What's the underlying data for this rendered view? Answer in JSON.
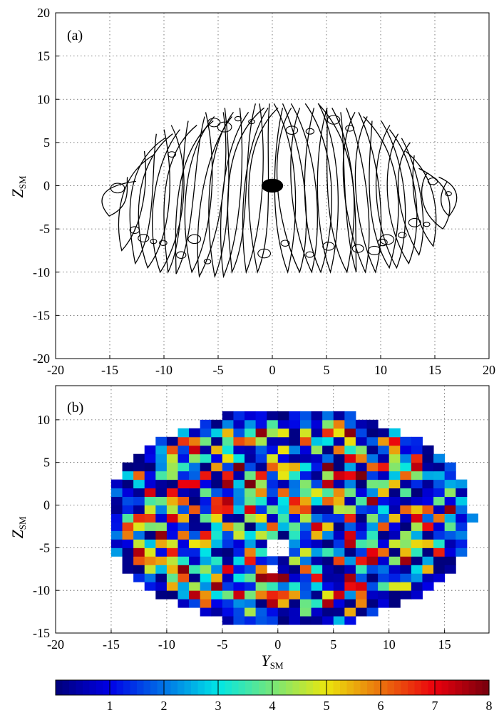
{
  "chart_data": [
    {
      "type": "line",
      "panel_label": "(a)",
      "xlim": [
        -20,
        20
      ],
      "ylim": [
        -20,
        20
      ],
      "xticks": [
        "-20",
        "-15",
        "-10",
        "-5",
        "0",
        "5",
        "10",
        "15",
        "20"
      ],
      "yticks": [
        "20",
        "15",
        "10",
        "5",
        "0",
        "-5",
        "-10",
        "-15",
        "-20"
      ],
      "ylabel": "Z",
      "ylabel_sub": "SM",
      "grid": true,
      "earth_marker": {
        "x": 0,
        "y": 0,
        "rx": 1.0,
        "ry": 1.0
      },
      "orbits": [
        {
          "y": -14.5,
          "top": 1.0,
          "bot": -3.5
        },
        {
          "y": -13.2,
          "top": 4.0,
          "bot": -7.5
        },
        {
          "y": -12.0,
          "top": 6.0,
          "bot": -9.0
        },
        {
          "y": -11.0,
          "top": 6.5,
          "bot": -9.5
        },
        {
          "y": -10.0,
          "top": 7.0,
          "bot": -10.0
        },
        {
          "y": -9.0,
          "top": 7.5,
          "bot": -10.0
        },
        {
          "y": -8.0,
          "top": 8.0,
          "bot": -10.2
        },
        {
          "y": -7.0,
          "top": 8.5,
          "bot": -10.0
        },
        {
          "y": -6.0,
          "top": 8.5,
          "bot": -10.5
        },
        {
          "y": -5.0,
          "top": 9.0,
          "bot": -10.5
        },
        {
          "y": -4.0,
          "top": 9.0,
          "bot": -10.5
        },
        {
          "y": -3.0,
          "top": 9.5,
          "bot": -10.0
        },
        {
          "y": -2.0,
          "top": 9.5,
          "bot": -10.0
        },
        {
          "y": -1.0,
          "top": 9.5,
          "bot": -10.0
        },
        {
          "y": 1.0,
          "top": 9.5,
          "bot": -10.0
        },
        {
          "y": 2.0,
          "top": 9.5,
          "bot": -10.0
        },
        {
          "y": 3.0,
          "top": 9.5,
          "bot": -10.0
        },
        {
          "y": 4.0,
          "top": 9.5,
          "bot": -10.0
        },
        {
          "y": 5.0,
          "top": 9.5,
          "bot": -10.0
        },
        {
          "y": 6.0,
          "top": 9.5,
          "bot": -10.0
        },
        {
          "y": 7.0,
          "top": 9.0,
          "bot": -10.0
        },
        {
          "y": 8.0,
          "top": 9.0,
          "bot": -10.0
        },
        {
          "y": 9.0,
          "top": 8.5,
          "bot": -10.0
        },
        {
          "y": 10.0,
          "top": 8.0,
          "bot": -9.5
        },
        {
          "y": 11.0,
          "top": 7.5,
          "bot": -9.5
        },
        {
          "y": 12.0,
          "top": 6.5,
          "bot": -9.0
        },
        {
          "y": 13.0,
          "top": 5.5,
          "bot": -8.0
        },
        {
          "y": 14.0,
          "top": 4.0,
          "bot": -7.0
        },
        {
          "y": 15.0,
          "top": 2.0,
          "bot": -5.0
        },
        {
          "y": 16.0,
          "top": 1.0,
          "bot": -3.5
        }
      ]
    },
    {
      "type": "heatmap",
      "panel_label": "(b)",
      "xlim": [
        -20,
        19
      ],
      "ylim": [
        -15,
        14
      ],
      "xticks": [
        "-20",
        "-15",
        "-10",
        "-5",
        "0",
        "5",
        "10",
        "15"
      ],
      "yticks": [
        "10",
        "5",
        "0",
        "-5",
        "-10",
        "-15"
      ],
      "xlabel": "Y",
      "xlabel_sub": "SM",
      "ylabel": "Z",
      "ylabel_sub": "SM",
      "grid": true,
      "cell_size": 1,
      "colorbar": {
        "min": 0,
        "max": 8,
        "ticks": [
          "1",
          "2",
          "3",
          "4",
          "5",
          "6",
          "7",
          "8"
        ]
      },
      "seed": 137,
      "holes": [
        [
          0,
          -5
        ],
        [
          -0.5,
          -7.5
        ]
      ]
    }
  ]
}
